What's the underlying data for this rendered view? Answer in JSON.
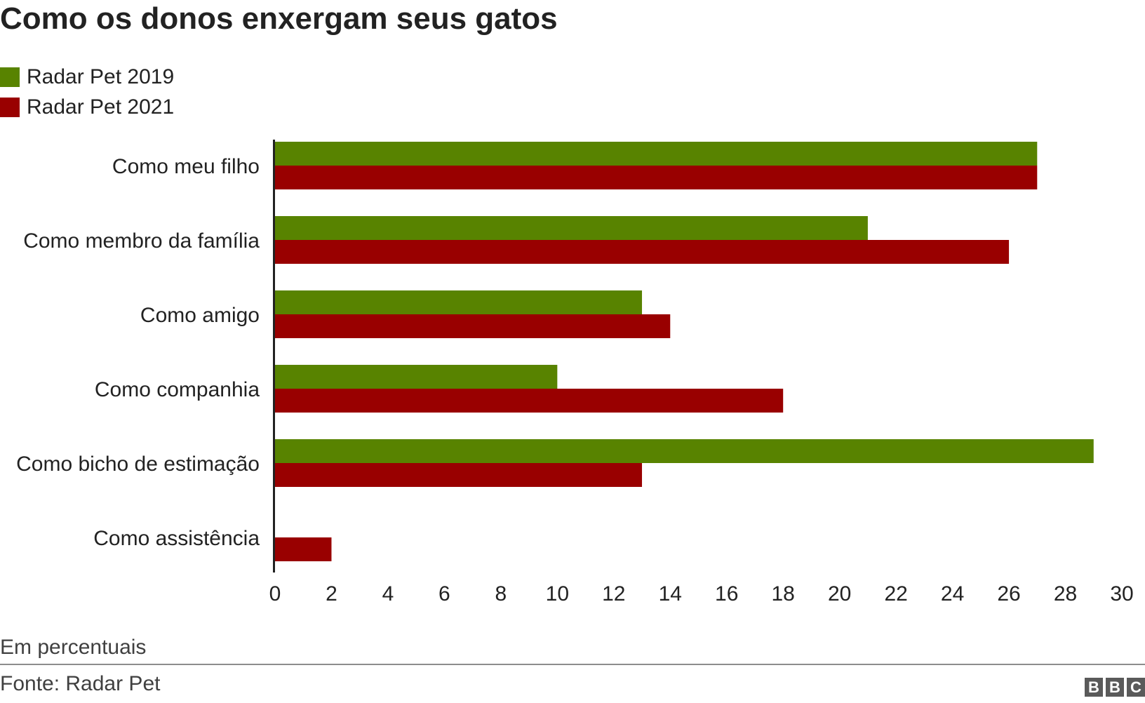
{
  "title": "Como os donos enxergam seus gatos",
  "legend": [
    {
      "label": "Radar Pet 2019",
      "color": "#588300"
    },
    {
      "label": "Radar Pet 2021",
      "color": "#990000"
    }
  ],
  "note": "Em percentuais",
  "source": "Fonte: Radar Pet",
  "logo": {
    "letters": [
      "B",
      "B",
      "C"
    ]
  },
  "chart_data": {
    "type": "bar",
    "orientation": "horizontal",
    "categories": [
      "Como meu filho",
      "Como membro da família",
      "Como amigo",
      "Como companhia",
      "Como bicho de estimação",
      "Como assistência"
    ],
    "series": [
      {
        "name": "Radar Pet 2019",
        "color": "#588300",
        "values": [
          27,
          21,
          13,
          10,
          29,
          0
        ]
      },
      {
        "name": "Radar Pet 2021",
        "color": "#990000",
        "values": [
          27,
          26,
          14,
          18,
          13,
          2
        ]
      }
    ],
    "xlim": [
      0,
      30
    ],
    "xticks": [
      0,
      2,
      4,
      6,
      8,
      10,
      12,
      14,
      16,
      18,
      20,
      22,
      24,
      26,
      28,
      30
    ],
    "grid": false,
    "legend_position": "top-left"
  }
}
